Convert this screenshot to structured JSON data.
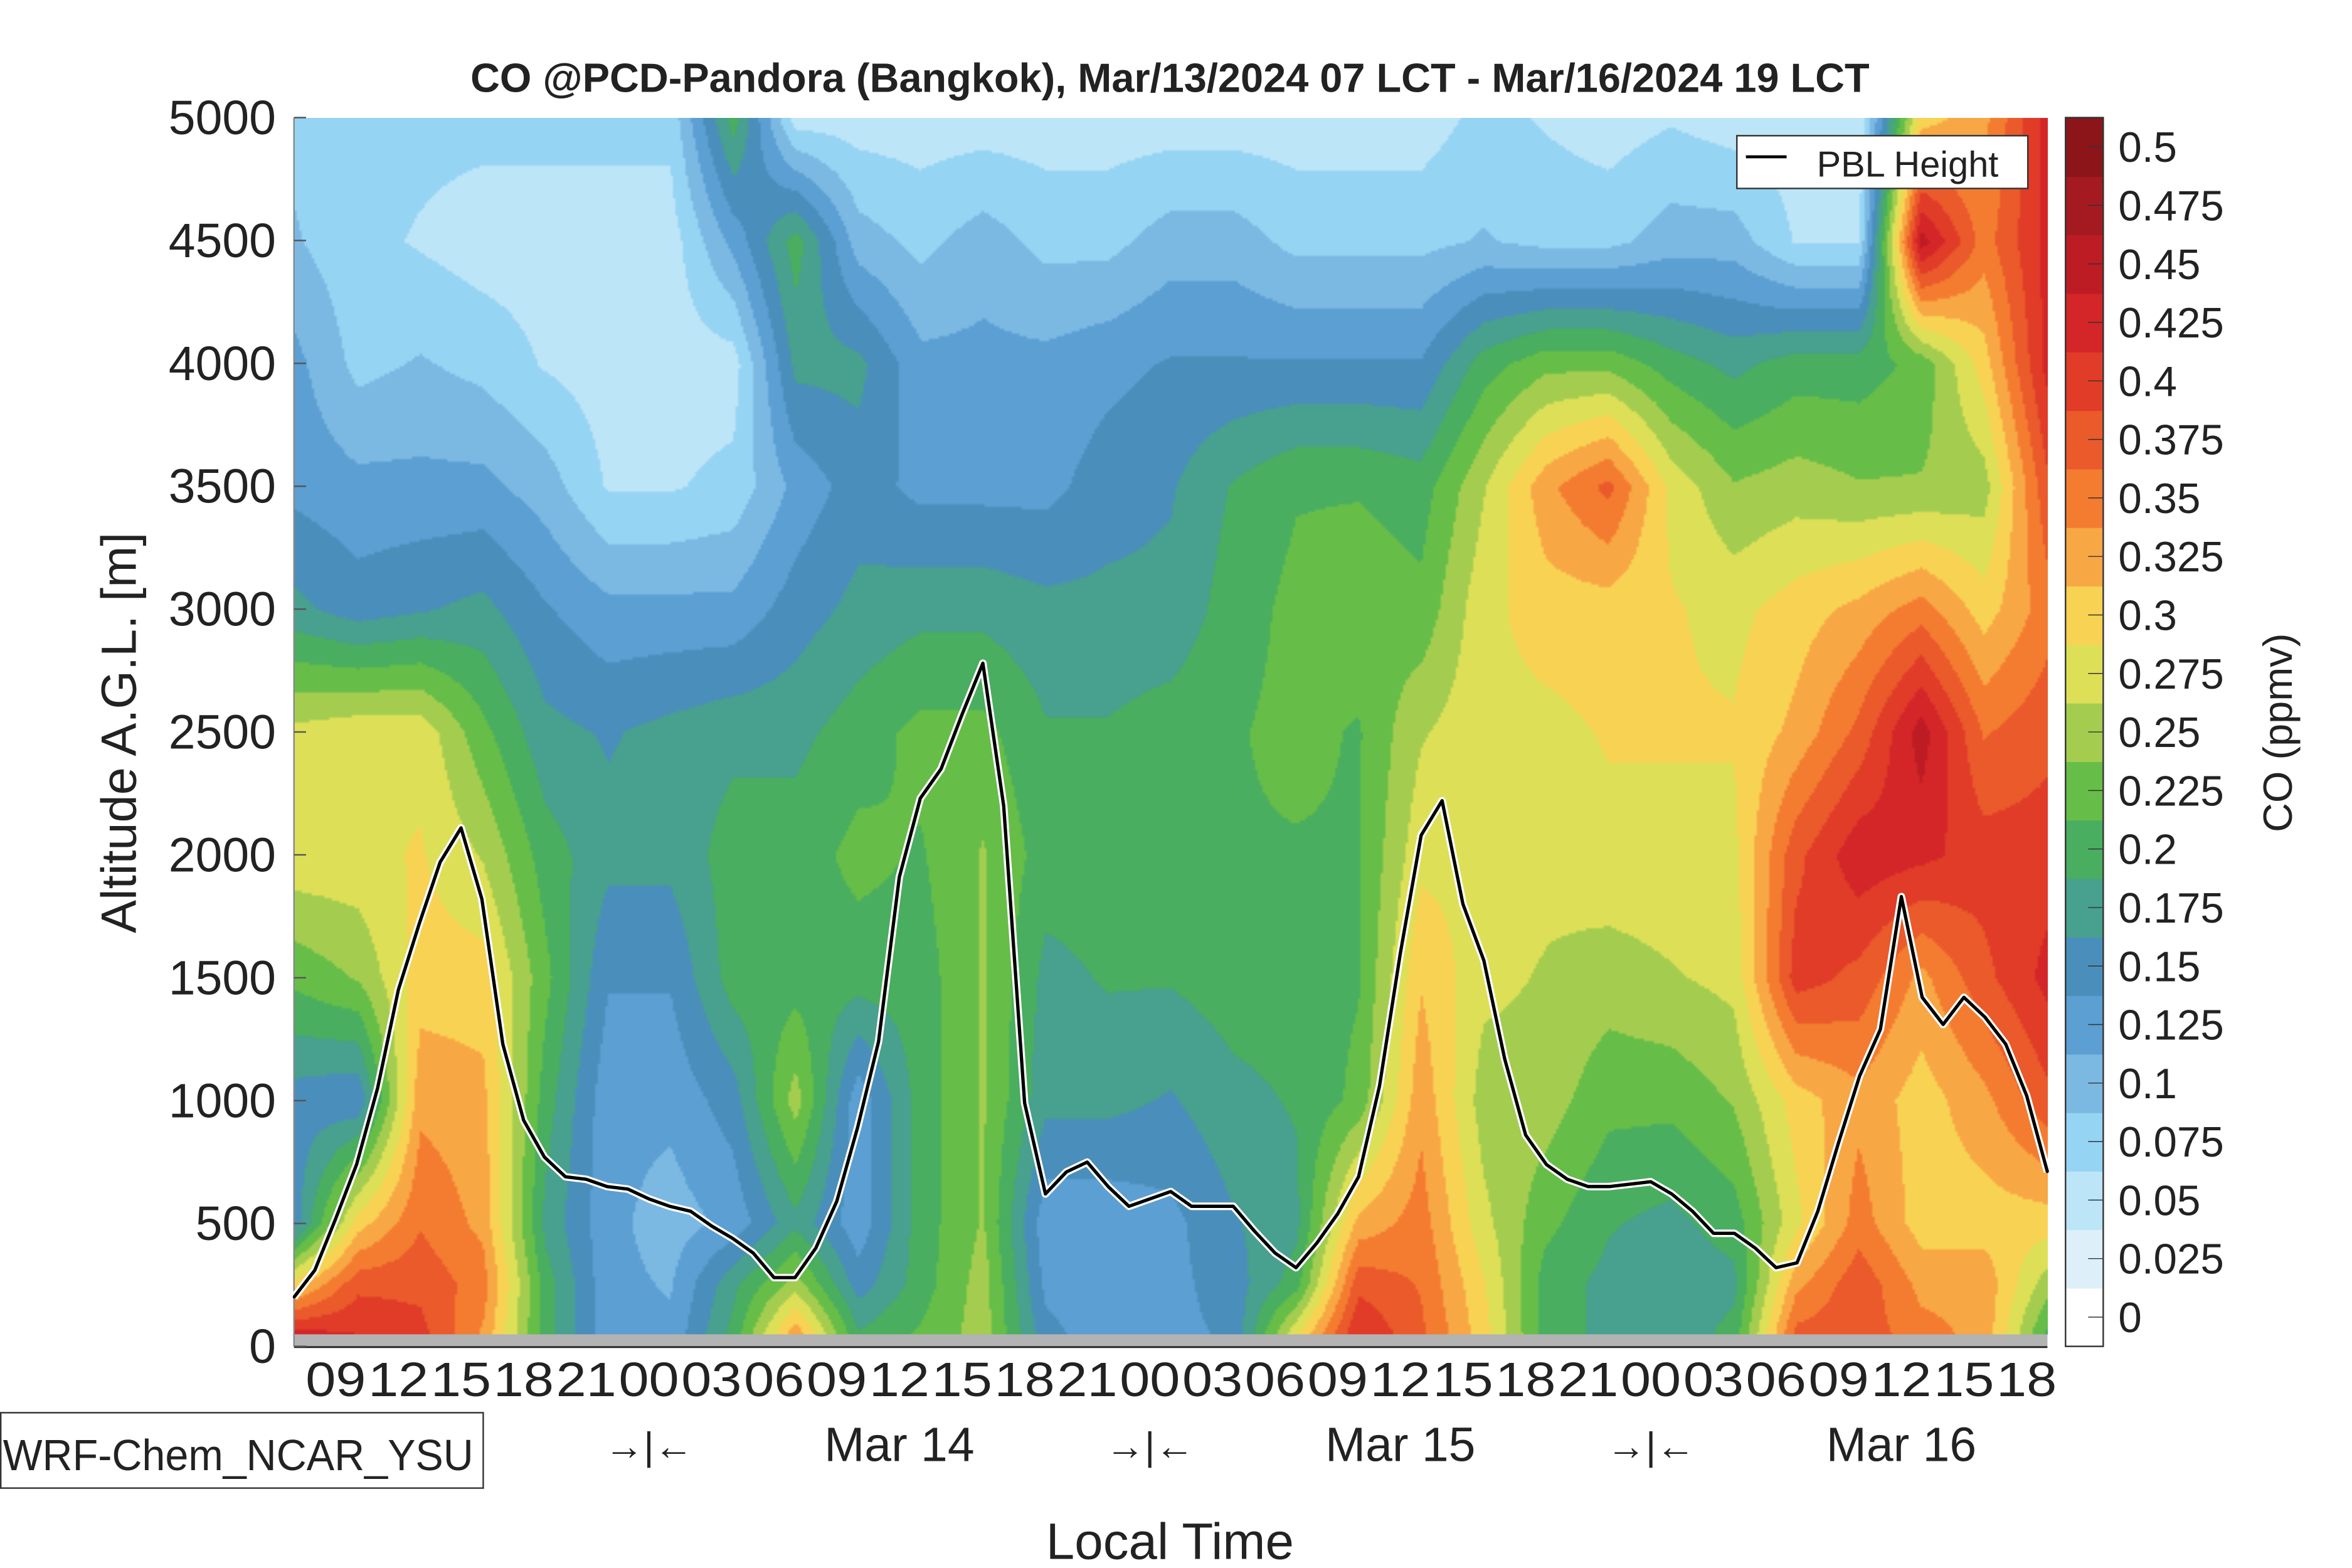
{
  "chart_data": {
    "type": "heatmap",
    "title": "CO @PCD-Pandora (Bangkok), Mar/13/2024 07 LCT - Mar/16/2024 19 LCT",
    "xlabel": "Local Time",
    "ylabel": "Altitude A.G.L. [m]",
    "colorbar_label": "CO (ppmv)",
    "model_label": "WRF-Chem_NCAR_YSU",
    "ylim": [
      0,
      5000
    ],
    "yticks": [
      0,
      500,
      1000,
      1500,
      2000,
      2500,
      3000,
      3500,
      4000,
      4500,
      5000
    ],
    "x_hours_range": [
      0,
      84
    ],
    "x_ticks": [
      {
        "hour": 2,
        "label": "09"
      },
      {
        "hour": 5,
        "label": "12"
      },
      {
        "hour": 8,
        "label": "15"
      },
      {
        "hour": 11,
        "label": "18"
      },
      {
        "hour": 14,
        "label": "21"
      },
      {
        "hour": 17,
        "label": "00"
      },
      {
        "hour": 20,
        "label": "03"
      },
      {
        "hour": 23,
        "label": "06"
      },
      {
        "hour": 26,
        "label": "09"
      },
      {
        "hour": 29,
        "label": "12"
      },
      {
        "hour": 32,
        "label": "15"
      },
      {
        "hour": 35,
        "label": "18"
      },
      {
        "hour": 38,
        "label": "21"
      },
      {
        "hour": 41,
        "label": "00"
      },
      {
        "hour": 44,
        "label": "03"
      },
      {
        "hour": 47,
        "label": "06"
      },
      {
        "hour": 50,
        "label": "09"
      },
      {
        "hour": 53,
        "label": "12"
      },
      {
        "hour": 56,
        "label": "15"
      },
      {
        "hour": 59,
        "label": "18"
      },
      {
        "hour": 62,
        "label": "21"
      },
      {
        "hour": 65,
        "label": "00"
      },
      {
        "hour": 68,
        "label": "03"
      },
      {
        "hour": 71,
        "label": "06"
      },
      {
        "hour": 74,
        "label": "09"
      },
      {
        "hour": 77,
        "label": "12"
      },
      {
        "hour": 80,
        "label": "15"
      },
      {
        "hour": 83,
        "label": "18"
      }
    ],
    "day_markers": [
      {
        "hour": 17,
        "label": "→|←"
      },
      {
        "hour": 41,
        "label": "→|←"
      },
      {
        "hour": 65,
        "label": "→|←"
      }
    ],
    "date_labels": [
      {
        "hour": 29,
        "label": "Mar 14"
      },
      {
        "hour": 53,
        "label": "Mar 15"
      },
      {
        "hour": 77,
        "label": "Mar 16"
      }
    ],
    "colorbar": {
      "levels": [
        "0",
        "0.025",
        "0.05",
        "0.075",
        "0.1",
        "0.125",
        "0.15",
        "0.175",
        "0.2",
        "0.225",
        "0.25",
        "0.275",
        "0.3",
        "0.325",
        "0.35",
        "0.375",
        "0.4",
        "0.425",
        "0.45",
        "0.475",
        "0.5"
      ],
      "colors": [
        "#ffffff",
        "#ddf0fa",
        "#bde5f8",
        "#96d4f3",
        "#7bb9e3",
        "#5b9fd3",
        "#4a8fbb",
        "#48a08e",
        "#49ae5f",
        "#66be48",
        "#a4cd50",
        "#dde057",
        "#f8d253",
        "#f8a745",
        "#f47c30",
        "#ea5a2b",
        "#e03c28",
        "#d42528",
        "#bd1c24",
        "#a51a21",
        "#8c151a"
      ]
    },
    "field": {
      "time_hours": [
        0,
        3,
        6,
        9,
        12,
        15,
        18,
        21,
        24,
        27,
        30,
        33,
        36,
        39,
        42,
        45,
        48,
        51,
        54,
        57,
        60,
        63,
        66,
        69,
        72,
        75,
        78,
        81,
        84
      ],
      "altitude_m": [
        0,
        250,
        500,
        1000,
        1500,
        2000,
        2500,
        3000,
        3500,
        4000,
        4500,
        5000
      ],
      "co_ppmv": [
        [
          0.45,
          0.3,
          0.15,
          0.15,
          0.22,
          0.28,
          0.27,
          0.17,
          0.13,
          0.12,
          0.09,
          0.08
        ],
        [
          0.42,
          0.38,
          0.3,
          0.14,
          0.24,
          0.28,
          0.28,
          0.15,
          0.12,
          0.08,
          0.07,
          0.07
        ],
        [
          0.4,
          0.38,
          0.36,
          0.33,
          0.3,
          0.29,
          0.28,
          0.16,
          0.12,
          0.09,
          0.06,
          0.07
        ],
        [
          0.33,
          0.35,
          0.33,
          0.32,
          0.3,
          0.26,
          0.22,
          0.17,
          0.12,
          0.08,
          0.05,
          0.07
        ],
        [
          0.2,
          0.2,
          0.18,
          0.2,
          0.22,
          0.2,
          0.17,
          0.14,
          0.1,
          0.06,
          0.05,
          0.07
        ],
        [
          0.12,
          0.12,
          0.12,
          0.12,
          0.14,
          0.17,
          0.16,
          0.12,
          0.06,
          0.05,
          0.05,
          0.07
        ],
        [
          0.12,
          0.11,
          0.1,
          0.12,
          0.14,
          0.17,
          0.17,
          0.12,
          0.06,
          0.05,
          0.05,
          0.07
        ],
        [
          0.2,
          0.18,
          0.12,
          0.15,
          0.2,
          0.2,
          0.18,
          0.12,
          0.07,
          0.05,
          0.12,
          0.2
        ],
        [
          0.35,
          0.25,
          0.18,
          0.25,
          0.2,
          0.2,
          0.18,
          0.15,
          0.12,
          0.17,
          0.2,
          0.05
        ],
        [
          0.2,
          0.15,
          0.12,
          0.12,
          0.2,
          0.22,
          0.2,
          0.17,
          0.15,
          0.17,
          0.1,
          0.05
        ],
        [
          0.22,
          0.2,
          0.2,
          0.2,
          0.2,
          0.21,
          0.22,
          0.18,
          0.13,
          0.12,
          0.08,
          0.05
        ],
        [
          0.25,
          0.25,
          0.24,
          0.24,
          0.24,
          0.24,
          0.22,
          0.18,
          0.13,
          0.12,
          0.1,
          0.05
        ],
        [
          0.15,
          0.13,
          0.12,
          0.17,
          0.18,
          0.2,
          0.19,
          0.17,
          0.13,
          0.12,
          0.08,
          0.05
        ],
        [
          0.12,
          0.12,
          0.12,
          0.17,
          0.19,
          0.2,
          0.19,
          0.17,
          0.15,
          0.13,
          0.08,
          0.05
        ],
        [
          0.13,
          0.13,
          0.13,
          0.16,
          0.19,
          0.2,
          0.2,
          0.17,
          0.16,
          0.14,
          0.1,
          0.05
        ],
        [
          0.14,
          0.15,
          0.16,
          0.18,
          0.2,
          0.21,
          0.21,
          0.2,
          0.19,
          0.14,
          0.1,
          0.05
        ],
        [
          0.3,
          0.2,
          0.18,
          0.19,
          0.2,
          0.21,
          0.22,
          0.22,
          0.21,
          0.14,
          0.08,
          0.05
        ],
        [
          0.42,
          0.38,
          0.32,
          0.22,
          0.21,
          0.21,
          0.21,
          0.23,
          0.21,
          0.14,
          0.08,
          0.05
        ],
        [
          0.37,
          0.36,
          0.35,
          0.33,
          0.31,
          0.28,
          0.26,
          0.22,
          0.2,
          0.14,
          0.08,
          0.05
        ],
        [
          0.3,
          0.29,
          0.27,
          0.25,
          0.27,
          0.28,
          0.28,
          0.28,
          0.26,
          0.2,
          0.09,
          0.07
        ],
        [
          0.2,
          0.2,
          0.22,
          0.25,
          0.26,
          0.27,
          0.28,
          0.3,
          0.33,
          0.23,
          0.08,
          0.06
        ],
        [
          0.18,
          0.18,
          0.19,
          0.22,
          0.25,
          0.28,
          0.29,
          0.3,
          0.37,
          0.23,
          0.08,
          0.05
        ],
        [
          0.17,
          0.17,
          0.18,
          0.22,
          0.26,
          0.28,
          0.29,
          0.29,
          0.28,
          0.2,
          0.1,
          0.06
        ],
        [
          0.2,
          0.18,
          0.2,
          0.24,
          0.27,
          0.28,
          0.29,
          0.28,
          0.24,
          0.18,
          0.1,
          0.05
        ],
        [
          0.38,
          0.33,
          0.28,
          0.3,
          0.4,
          0.38,
          0.32,
          0.3,
          0.25,
          0.2,
          0.06,
          0.05
        ],
        [
          0.38,
          0.38,
          0.35,
          0.33,
          0.38,
          0.43,
          0.37,
          0.32,
          0.24,
          0.2,
          0.06,
          0.04
        ],
        [
          0.35,
          0.33,
          0.3,
          0.3,
          0.33,
          0.42,
          0.45,
          0.35,
          0.24,
          0.22,
          0.45,
          0.3
        ],
        [
          0.33,
          0.33,
          0.3,
          0.33,
          0.38,
          0.4,
          0.36,
          0.3,
          0.25,
          0.3,
          0.35,
          0.33
        ],
        [
          0.2,
          0.25,
          0.3,
          0.38,
          0.42,
          0.4,
          0.38,
          0.35,
          0.38,
          0.42,
          0.42,
          0.42
        ]
      ]
    },
    "series": [
      {
        "name": "PBL Height",
        "color": "#000000",
        "x_hours": [
          0,
          1,
          2,
          3,
          4,
          5,
          6,
          7,
          8,
          9,
          10,
          11,
          12,
          13,
          14,
          15,
          16,
          17,
          18,
          19,
          20,
          21,
          22,
          23,
          24,
          25,
          26,
          27,
          28,
          29,
          30,
          31,
          32,
          33,
          34,
          35,
          36,
          37,
          38,
          39,
          40,
          41,
          42,
          43,
          44,
          45,
          46,
          47,
          48,
          49,
          50,
          51,
          52,
          53,
          54,
          55,
          56,
          57,
          58,
          59,
          60,
          61,
          62,
          63,
          64,
          65,
          66,
          67,
          68,
          69,
          70,
          71,
          72,
          73,
          74,
          75,
          76,
          77,
          78,
          79,
          80,
          81,
          82,
          83,
          84
        ],
        "values": [
          200,
          310,
          520,
          740,
          1050,
          1450,
          1720,
          1970,
          2110,
          1820,
          1230,
          920,
          770,
          690,
          680,
          650,
          640,
          600,
          570,
          550,
          490,
          440,
          380,
          280,
          280,
          400,
          590,
          890,
          1240,
          1910,
          2230,
          2350,
          2570,
          2780,
          2200,
          990,
          620,
          710,
          750,
          650,
          570,
          600,
          630,
          570,
          570,
          570,
          470,
          380,
          320,
          420,
          540,
          690,
          1060,
          1600,
          2080,
          2220,
          1800,
          1570,
          1170,
          860,
          740,
          680,
          650,
          650,
          660,
          670,
          620,
          550,
          460,
          460,
          400,
          320,
          340,
          550,
          830,
          1100,
          1290,
          1830,
          1420,
          1310,
          1420,
          1340,
          1230,
          1020,
          710
        ]
      }
    ],
    "legend": {
      "position": "top-right",
      "entries": [
        "PBL Height"
      ]
    }
  }
}
